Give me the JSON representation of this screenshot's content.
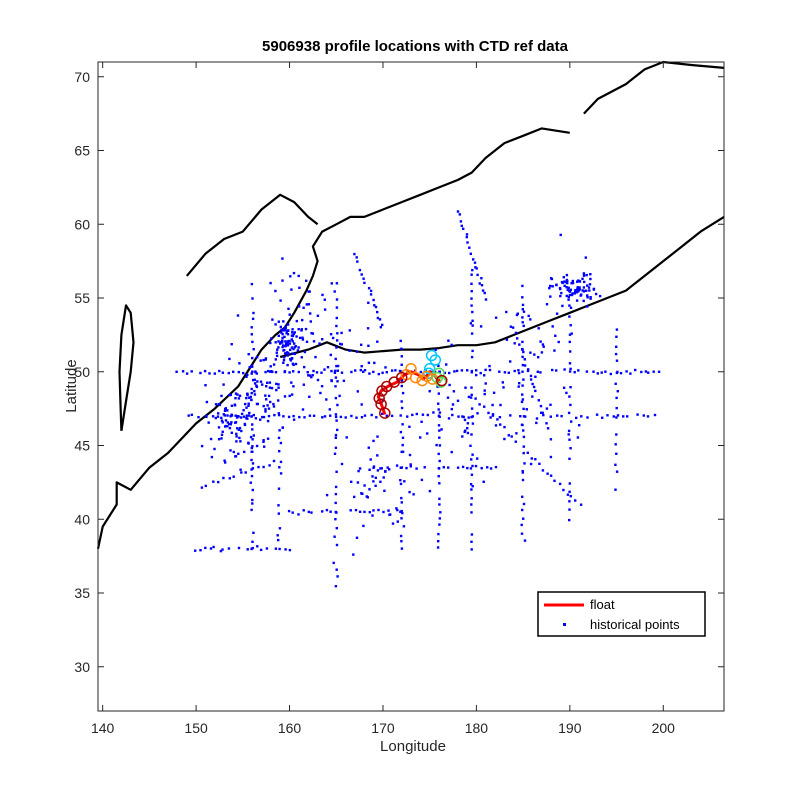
{
  "chart_data": {
    "type": "scatter",
    "title": "5906938 profile locations with CTD ref data",
    "xlabel": "Longitude",
    "ylabel": "Latitude",
    "xlim": [
      139.5,
      206.5
    ],
    "ylim": [
      27,
      71
    ],
    "xticks": [
      140,
      150,
      160,
      170,
      180,
      190,
      200
    ],
    "yticks": [
      30,
      35,
      40,
      45,
      50,
      55,
      60,
      65,
      70
    ],
    "grid": false,
    "legend_position": "bottom-right",
    "legend": [
      {
        "label": "float",
        "color": "#ff0000",
        "marker": "line"
      },
      {
        "label": "historical points",
        "color": "#0000ff",
        "marker": "dot"
      }
    ],
    "series": [
      {
        "name": "float",
        "type": "line",
        "color": "#ff0000",
        "points": [
          [
            170.2,
            47.1
          ],
          [
            170.0,
            47.5
          ],
          [
            169.7,
            48.0
          ],
          [
            169.5,
            48.3
          ],
          [
            169.8,
            48.7
          ],
          [
            170.5,
            49.0
          ],
          [
            171.5,
            49.3
          ],
          [
            172.3,
            49.8
          ],
          [
            173.0,
            50.0
          ],
          [
            173.8,
            49.8
          ],
          [
            174.3,
            49.5
          ],
          [
            174.8,
            49.8
          ],
          [
            175.3,
            50.0
          ],
          [
            175.8,
            49.5
          ],
          [
            176.2,
            49.3
          ]
        ]
      },
      {
        "name": "historical points",
        "type": "scatter",
        "color": "#0000ff",
        "clusters": [
          {
            "x": 159.5,
            "y": 52.0,
            "sx": 0.8,
            "sy": 0.8,
            "n": 90
          },
          {
            "x": 190.5,
            "y": 55.6,
            "sx": 1.2,
            "sy": 0.5,
            "n": 80
          },
          {
            "x": 154.0,
            "y": 46.5,
            "sx": 1.5,
            "sy": 1.2,
            "n": 90
          },
          {
            "x": 157.0,
            "y": 48.5,
            "sx": 2.0,
            "sy": 1.5,
            "n": 80
          },
          {
            "x": 162.0,
            "y": 53.5,
            "sx": 2.0,
            "sy": 2.0,
            "n": 45
          },
          {
            "x": 170.0,
            "y": 42.0,
            "sx": 2.5,
            "sy": 1.5,
            "n": 50
          },
          {
            "x": 180.0,
            "y": 47.0,
            "sx": 4.0,
            "sy": 2.0,
            "n": 60
          },
          {
            "x": 165.0,
            "y": 50.0,
            "sx": 3.0,
            "sy": 1.8,
            "n": 50
          },
          {
            "x": 186.0,
            "y": 52.0,
            "sx": 3.5,
            "sy": 2.5,
            "n": 45
          }
        ],
        "lines": [
          {
            "from": [
              148.0,
              50.0
            ],
            "to": [
              199.5,
              50.0
            ],
            "step": 0.5
          },
          {
            "from": [
              149.0,
              47.0
            ],
            "to": [
              199.5,
              47.0
            ],
            "step": 0.55
          },
          {
            "from": [
              156.0,
              38.0
            ],
            "to": [
              156.0,
              56.0
            ],
            "step": 0.5
          },
          {
            "from": [
              165.0,
              35.5
            ],
            "to": [
              165.0,
              56.0
            ],
            "step": 0.55
          },
          {
            "from": [
              172.0,
              38.0
            ],
            "to": [
              172.0,
              52.0
            ],
            "step": 0.5
          },
          {
            "from": [
              176.0,
              38.0
            ],
            "to": [
              176.0,
              50.5
            ],
            "step": 0.5
          },
          {
            "from": [
              179.5,
              38.0
            ],
            "to": [
              179.5,
              57.0
            ],
            "step": 0.5
          },
          {
            "from": [
              185.0,
              38.5
            ],
            "to": [
              185.0,
              56.5
            ],
            "step": 0.5
          },
          {
            "from": [
              190.0,
              40.0
            ],
            "to": [
              190.0,
              55.0
            ],
            "step": 0.6
          },
          {
            "from": [
              195.0,
              42.0
            ],
            "to": [
              195.0,
              53.0
            ],
            "step": 0.6
          },
          {
            "from": [
              160.0,
              40.5
            ],
            "to": [
              172.0,
              40.5
            ],
            "step": 0.5
          },
          {
            "from": [
              167.5,
              43.5
            ],
            "to": [
              182.0,
              43.5
            ],
            "step": 0.5
          },
          {
            "from": [
              150.0,
              38.0
            ],
            "to": [
              160.0,
              38.0
            ],
            "step": 0.5
          },
          {
            "from": [
              180.0,
              48.0
            ],
            "to": [
              191.0,
              41.0
            ],
            "step": 0.5
          },
          {
            "from": [
              184.0,
              53.0
            ],
            "to": [
              188.0,
              45.5
            ],
            "step": 0.4
          },
          {
            "from": [
              178.0,
              61.0
            ],
            "to": [
              181.0,
              55.0
            ],
            "step": 0.3
          },
          {
            "from": [
              167.0,
              58.0
            ],
            "to": [
              170.0,
              53.0
            ],
            "step": 0.3
          },
          {
            "from": [
              150.0,
              42.0
            ],
            "to": [
              159.0,
              44.0
            ],
            "step": 0.6
          },
          {
            "from": [
              159.0,
              46.0
            ],
            "to": [
              159.0,
              38.5
            ],
            "step": 0.5
          }
        ]
      },
      {
        "name": "ref-cyan",
        "type": "markers",
        "color": "#00c8ff",
        "points": [
          [
            175.2,
            51.1
          ],
          [
            175.6,
            50.8
          ],
          [
            175.0,
            50.2
          ],
          [
            174.9,
            49.9
          ]
        ]
      },
      {
        "name": "ref-green",
        "type": "markers",
        "color": "#55dd55",
        "points": [
          [
            175.8,
            49.6
          ],
          [
            176.2,
            49.3
          ],
          [
            176.0,
            49.9
          ]
        ]
      },
      {
        "name": "ref-orange",
        "type": "markers",
        "color": "#ff8800",
        "points": [
          [
            172.5,
            49.8
          ],
          [
            173.5,
            49.6
          ],
          [
            174.2,
            49.4
          ],
          [
            174.7,
            49.7
          ],
          [
            173.0,
            50.2
          ],
          [
            175.3,
            49.5
          ]
        ]
      },
      {
        "name": "ref-darkred",
        "type": "markers",
        "color": "#aa0000",
        "points": [
          [
            170.2,
            47.2
          ],
          [
            169.8,
            47.8
          ],
          [
            169.6,
            48.2
          ],
          [
            169.9,
            48.7
          ],
          [
            170.4,
            49.0
          ],
          [
            171.2,
            49.3
          ],
          [
            172.0,
            49.6
          ],
          [
            176.3,
            49.4
          ]
        ]
      }
    ],
    "coastlines": [
      {
        "name": "asia-kamchatka",
        "points": [
          [
            139.5,
            38.0
          ],
          [
            140.0,
            39.5
          ],
          [
            141.5,
            41.0
          ],
          [
            141.5,
            42.5
          ],
          [
            143.0,
            42.0
          ],
          [
            145.0,
            43.5
          ],
          [
            147.0,
            44.5
          ],
          [
            148.5,
            45.5
          ],
          [
            150.0,
            46.5
          ],
          [
            152.0,
            47.5
          ],
          [
            154.5,
            49.0
          ],
          [
            156.0,
            50.5
          ],
          [
            157.0,
            51.5
          ],
          [
            158.5,
            52.5
          ],
          [
            159.5,
            53.0
          ],
          [
            160.5,
            54.0
          ],
          [
            161.8,
            55.5
          ],
          [
            162.5,
            56.5
          ],
          [
            163.0,
            57.5
          ],
          [
            162.5,
            58.5
          ],
          [
            163.5,
            59.5
          ],
          [
            165.0,
            60.0
          ],
          [
            166.5,
            60.5
          ],
          [
            168.0,
            60.5
          ],
          [
            170.0,
            61.0
          ],
          [
            172.0,
            61.5
          ],
          [
            174.0,
            62.0
          ],
          [
            176.0,
            62.5
          ],
          [
            178.0,
            63.0
          ],
          [
            179.5,
            63.5
          ],
          [
            181.0,
            64.5
          ],
          [
            183.0,
            65.5
          ],
          [
            185.0,
            66.0
          ],
          [
            187.0,
            66.5
          ],
          [
            190.0,
            66.2
          ]
        ]
      },
      {
        "name": "alaska",
        "points": [
          [
            191.5,
            67.5
          ],
          [
            193.0,
            68.5
          ],
          [
            196.0,
            69.5
          ],
          [
            198.0,
            70.5
          ],
          [
            200.0,
            71.0
          ],
          [
            203.0,
            70.8
          ],
          [
            206.5,
            70.6
          ]
        ]
      },
      {
        "name": "aleutians",
        "points": [
          [
            159.0,
            51.0
          ],
          [
            162.0,
            51.5
          ],
          [
            164.0,
            52.0
          ],
          [
            166.0,
            51.5
          ],
          [
            168.0,
            51.3
          ],
          [
            170.0,
            51.4
          ],
          [
            172.0,
            51.5
          ],
          [
            174.0,
            51.5
          ],
          [
            176.0,
            51.6
          ],
          [
            178.0,
            51.8
          ],
          [
            180.0,
            51.8
          ],
          [
            182.0,
            52.0
          ],
          [
            184.0,
            52.5
          ],
          [
            186.0,
            53.0
          ],
          [
            188.0,
            53.5
          ],
          [
            190.0,
            54.0
          ],
          [
            192.0,
            54.5
          ],
          [
            194.0,
            55.0
          ],
          [
            196.0,
            55.5
          ],
          [
            198.0,
            56.5
          ],
          [
            200.0,
            57.5
          ],
          [
            202.0,
            58.5
          ],
          [
            204.0,
            59.5
          ],
          [
            206.5,
            60.5
          ]
        ]
      },
      {
        "name": "okhotsk-shore",
        "points": [
          [
            149.0,
            56.5
          ],
          [
            151.0,
            58.0
          ],
          [
            153.0,
            59.0
          ],
          [
            155.0,
            59.5
          ],
          [
            157.0,
            61.0
          ],
          [
            159.0,
            62.0
          ],
          [
            160.5,
            61.5
          ],
          [
            162.0,
            60.5
          ],
          [
            163.0,
            60.0
          ]
        ]
      },
      {
        "name": "sakhalin",
        "points": [
          [
            142.0,
            46.0
          ],
          [
            142.5,
            48.0
          ],
          [
            143.0,
            50.0
          ],
          [
            143.3,
            52.0
          ],
          [
            143.0,
            54.0
          ],
          [
            142.5,
            54.5
          ],
          [
            142.0,
            52.5
          ],
          [
            141.8,
            50.0
          ],
          [
            141.9,
            48.0
          ],
          [
            142.0,
            46.0
          ]
        ]
      }
    ]
  }
}
